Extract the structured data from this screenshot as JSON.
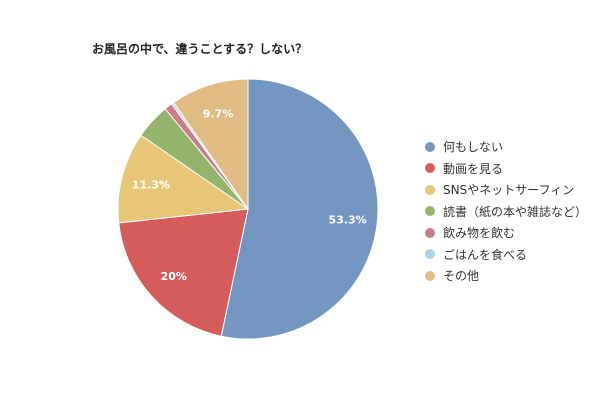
{
  "chart_data": {
    "type": "pie",
    "title": "お風呂の中で、違うことする？しない？",
    "categories": [
      "何もしない",
      "動画を見る",
      "SNSやネットサーフィン",
      "読書（紙の本や雑誌など）",
      "飲み物を飲む",
      "ごはんを食べる",
      "その他"
    ],
    "values": [
      53.3,
      20.0,
      11.3,
      4.4,
      1.0,
      0.3,
      9.7
    ],
    "data_labels": [
      "53.3%",
      "20%",
      "11.3%",
      "",
      "",
      "",
      "9.7%"
    ],
    "colors": [
      "#7497c1",
      "#d65c5c",
      "#e8c677",
      "#93b46a",
      "#c97c8a",
      "#a8d6e6",
      "#e0bb83"
    ],
    "start_angle_deg": 0,
    "direction": "clockwise",
    "legend_position": "right"
  }
}
